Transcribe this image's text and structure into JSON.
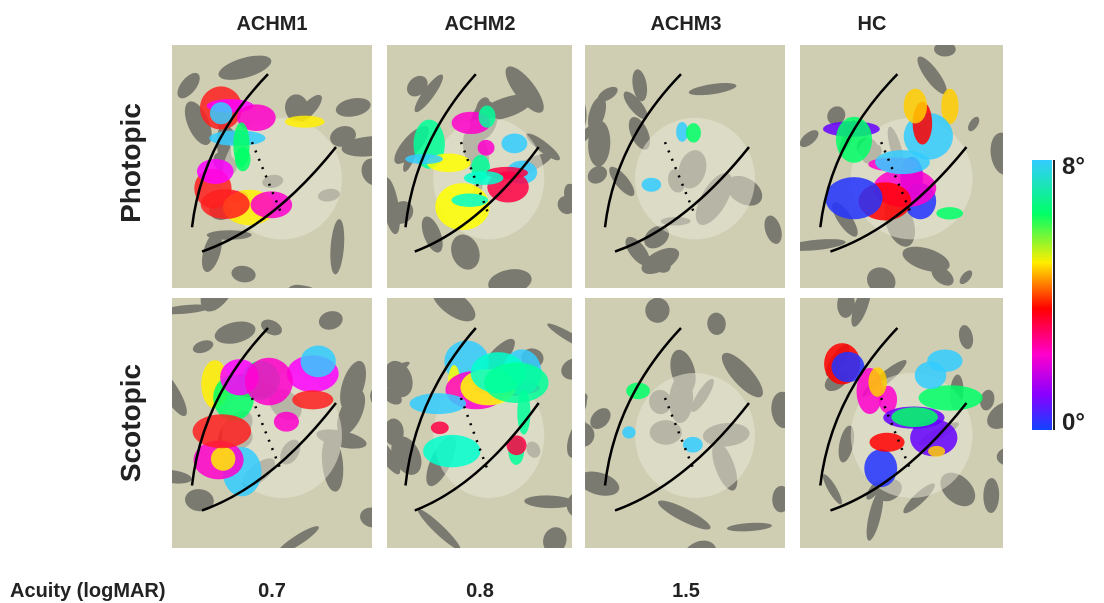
{
  "columns": [
    "ACHM1",
    "ACHM2",
    "ACHM3",
    "HC"
  ],
  "rows": [
    "Photopic",
    "Scotopic"
  ],
  "colorbar": {
    "max_label": "8°",
    "min_label": "0°"
  },
  "acuity": {
    "label": "Acuity (logMAR)",
    "values": [
      0.7,
      0.8,
      1.5
    ]
  }
}
